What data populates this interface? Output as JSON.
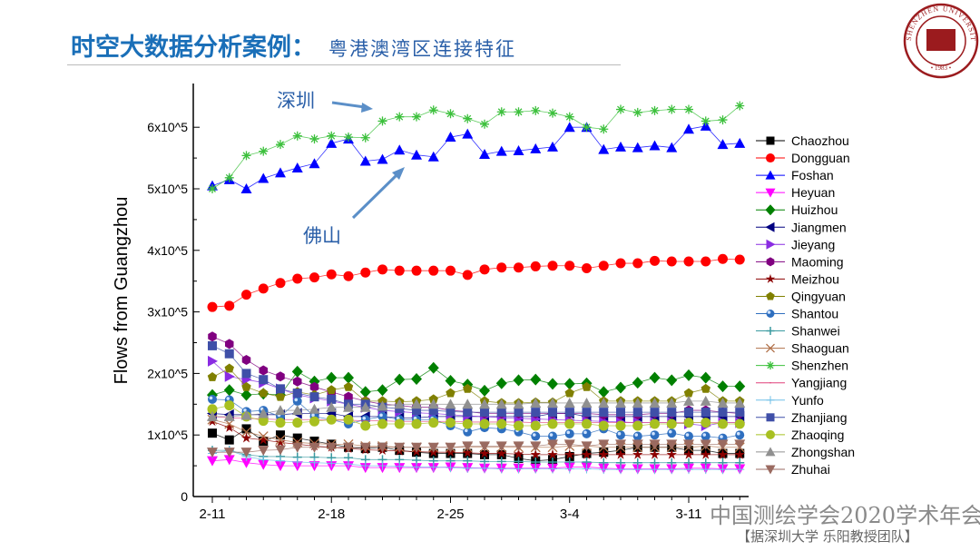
{
  "header": {
    "title": "时空大数据分析案例：",
    "subtitle": "粤港澳湾区连接特征"
  },
  "logo": {
    "text": "SHENZHEN UNIVERSITY",
    "year": "1983",
    "color": "#9b1b1e"
  },
  "watermark": {
    "line1": "中国测绘学会2020学术年会",
    "line2": "【据深圳大学 乐阳教授团队】"
  },
  "annotations": [
    {
      "text": "深圳",
      "color": "#2a5fa8"
    },
    {
      "text": "佛山",
      "color": "#2a5fa8"
    }
  ],
  "chart_data": {
    "type": "line",
    "title": "",
    "xlabel": "",
    "ylabel": "Flows from Guangzhou",
    "ylim": [
      0,
      650000
    ],
    "y_ticks": [
      0,
      100000,
      200000,
      300000,
      400000,
      500000,
      600000
    ],
    "y_tick_labels": [
      "0",
      "1x10^5",
      "2x10^5",
      "3x10^5",
      "4x10^5",
      "5x10^5",
      "6x10^5"
    ],
    "x_tick_labels": [
      "2-11",
      "2-18",
      "2-25",
      "3-4",
      "3-11"
    ],
    "x_tick_indices": [
      0,
      7,
      14,
      21,
      28
    ],
    "x": [
      "2-11",
      "2-12",
      "2-13",
      "2-14",
      "2-15",
      "2-16",
      "2-17",
      "2-18",
      "2-19",
      "2-20",
      "2-21",
      "2-22",
      "2-23",
      "2-24",
      "2-25",
      "2-26",
      "2-27",
      "2-28",
      "2-29",
      "3-1",
      "3-2",
      "3-3",
      "3-4",
      "3-5",
      "3-6",
      "3-7",
      "3-8",
      "3-9",
      "3-10",
      "3-11",
      "3-12",
      "3-13"
    ],
    "grid": false,
    "legend_placement": "right",
    "series": [
      {
        "name": "Chaozhou",
        "color": "#000000",
        "marker": "square",
        "values": [
          103000,
          92000,
          110000,
          90000,
          100000,
          95000,
          90000,
          85000,
          80000,
          78000,
          80000,
          75000,
          72000,
          70000,
          70000,
          70000,
          68000,
          68000,
          62000,
          58000,
          60000,
          65000,
          70000,
          72000,
          75000,
          80000,
          80000,
          80000,
          75000,
          75000,
          70000,
          70000
        ]
      },
      {
        "name": "Dongguan",
        "color": "#ff0000",
        "marker": "circle",
        "values": [
          308000,
          310000,
          328000,
          338000,
          347000,
          354000,
          356000,
          361000,
          358000,
          364000,
          369000,
          367000,
          367000,
          367000,
          367000,
          360000,
          369000,
          372000,
          372000,
          374000,
          375000,
          375000,
          371000,
          375000,
          379000,
          379000,
          383000,
          382000,
          382000,
          382000,
          386000,
          385000
        ]
      },
      {
        "name": "Foshan",
        "color": "#0000ff",
        "marker": "triangle-up",
        "values": [
          505000,
          515000,
          500000,
          517000,
          526000,
          534000,
          541000,
          574000,
          581000,
          545000,
          548000,
          563000,
          555000,
          552000,
          584000,
          589000,
          556000,
          561000,
          562000,
          565000,
          568000,
          600000,
          600000,
          564000,
          568000,
          567000,
          570000,
          567000,
          597000,
          602000,
          572000,
          574000
        ]
      },
      {
        "name": "Heyuan",
        "color": "#ff00ff",
        "marker": "triangle-down",
        "values": [
          58000,
          60000,
          55000,
          52000,
          50000,
          50000,
          50000,
          50000,
          50000,
          47000,
          47000,
          47000,
          47000,
          47000,
          48000,
          47000,
          46000,
          46000,
          46000,
          46000,
          46000,
          48000,
          48000,
          46000,
          45000,
          45000,
          45000,
          45000,
          46000,
          46000,
          45000,
          45000
        ]
      },
      {
        "name": "Huizhou",
        "color": "#008000",
        "marker": "diamond",
        "values": [
          165000,
          173000,
          165000,
          167000,
          165000,
          203000,
          187000,
          193000,
          193000,
          170000,
          173000,
          190000,
          191000,
          209000,
          188000,
          182000,
          172000,
          184000,
          189000,
          190000,
          183000,
          183000,
          184000,
          170000,
          177000,
          185000,
          193000,
          189000,
          197000,
          193000,
          179000,
          179000
        ]
      },
      {
        "name": "Jiangmen",
        "color": "#000080",
        "marker": "triangle-left",
        "values": [
          135000,
          133000,
          133000,
          133000,
          133000,
          135000,
          135000,
          135000,
          130000,
          130000,
          130000,
          128000,
          128000,
          130000,
          130000,
          130000,
          130000,
          130000,
          130000,
          130000,
          135000,
          135000,
          130000,
          130000,
          130000,
          130000,
          130000,
          130000,
          130000,
          130000,
          130000,
          130000
        ]
      },
      {
        "name": "Jieyang",
        "color": "#8a2be2",
        "marker": "triangle-right",
        "values": [
          220000,
          195000,
          190000,
          185000,
          175000,
          165000,
          160000,
          155000,
          150000,
          145000,
          140000,
          138000,
          136000,
          135000,
          133000,
          131000,
          130000,
          128000,
          127000,
          126000,
          125000,
          124000,
          123000,
          122000,
          121000,
          120000,
          120000,
          120000,
          118000,
          115000,
          120000,
          120000
        ]
      },
      {
        "name": "Maoming",
        "color": "#800080",
        "marker": "hexagon",
        "values": [
          260000,
          248000,
          222000,
          205000,
          195000,
          187000,
          178000,
          170000,
          162000,
          155000,
          150000,
          148000,
          145000,
          145000,
          140000,
          138000,
          135000,
          135000,
          135000,
          135000,
          135000,
          135000,
          135000,
          133000,
          133000,
          133000,
          135000,
          135000,
          140000,
          140000,
          137000,
          135000
        ]
      },
      {
        "name": "Meizhou",
        "color": "#8b0000",
        "marker": "star",
        "values": [
          122000,
          112000,
          95000,
          92000,
          88000,
          85000,
          82000,
          80000,
          78000,
          76000,
          75000,
          74000,
          73000,
          72000,
          72000,
          71000,
          70000,
          70000,
          69000,
          68000,
          68000,
          68000,
          68000,
          68000,
          68000,
          68000,
          68000,
          68000,
          68000,
          68000,
          68000,
          68000
        ]
      },
      {
        "name": "Qingyuan",
        "color": "#808000",
        "marker": "pentagon",
        "values": [
          194000,
          208000,
          178000,
          168000,
          162000,
          170000,
          165000,
          173000,
          178000,
          155000,
          155000,
          154000,
          155000,
          158000,
          168000,
          175000,
          155000,
          152000,
          152000,
          153000,
          153000,
          168000,
          178000,
          155000,
          155000,
          155000,
          155000,
          155000,
          168000,
          175000,
          155000,
          155000
        ]
      },
      {
        "name": "Shantou",
        "color": "#2f6fbf",
        "marker": "sphere",
        "values": [
          158000,
          157000,
          138000,
          140000,
          130000,
          155000,
          130000,
          125000,
          118000,
          125000,
          130000,
          125000,
          125000,
          125000,
          115000,
          105000,
          112000,
          110000,
          105000,
          98000,
          98000,
          102000,
          102000,
          110000,
          100000,
          98000,
          100000,
          103000,
          98000,
          98000,
          95000,
          100000
        ]
      },
      {
        "name": "Shanwei",
        "color": "#3a9aa0",
        "marker": "plus",
        "values": [
          75000,
          75000,
          68000,
          65000,
          65000,
          64000,
          64000,
          63000,
          63000,
          60000,
          60000,
          60000,
          59000,
          58000,
          58000,
          58000,
          57000,
          57000,
          57000,
          56000,
          56000,
          56000,
          56000,
          55000,
          55000,
          55000,
          55000,
          55000,
          55000,
          55000,
          55000,
          55000
        ]
      },
      {
        "name": "Shaoguan",
        "color": "#b07048",
        "marker": "x",
        "values": [
          125000,
          118000,
          105000,
          98000,
          92000,
          88000,
          86000,
          85000,
          85000,
          82000,
          82000,
          80000,
          80000,
          80000,
          80000,
          80000,
          80000,
          80000,
          80000,
          80000,
          80000,
          82000,
          82000,
          80000,
          80000,
          80000,
          80000,
          80000,
          80000,
          82000,
          80000,
          80000
        ]
      },
      {
        "name": "Shenzhen",
        "color": "#3cc03c",
        "marker": "asterisk",
        "values": [
          500000,
          518000,
          554000,
          561000,
          572000,
          586000,
          581000,
          586000,
          584000,
          583000,
          610000,
          617000,
          617000,
          628000,
          622000,
          614000,
          605000,
          625000,
          625000,
          627000,
          623000,
          617000,
          600000,
          597000,
          629000,
          624000,
          627000,
          629000,
          629000,
          610000,
          612000,
          635000
        ]
      },
      {
        "name": "Yangjiang",
        "color": "#e0407a",
        "marker": "dash",
        "values": [
          130000,
          128000,
          127000,
          126000,
          125000,
          125000,
          125000,
          124000,
          124000,
          123000,
          123000,
          122000,
          122000,
          122000,
          122000,
          121000,
          121000,
          121000,
          121000,
          120000,
          120000,
          120000,
          120000,
          120000,
          120000,
          120000,
          120000,
          120000,
          120000,
          120000,
          120000,
          120000
        ]
      },
      {
        "name": "Yunfo",
        "color": "#70c0e8",
        "marker": "plus-thin",
        "values": [
          70000,
          75000,
          65000,
          60000,
          58000,
          56000,
          55000,
          54000,
          53000,
          50000,
          50000,
          49000,
          48000,
          48000,
          47000,
          46000,
          46000,
          45000,
          45000,
          45000,
          45000,
          45000,
          45000,
          44000,
          44000,
          44000,
          44000,
          44000,
          44000,
          44000,
          44000,
          44000
        ]
      },
      {
        "name": "Zhanjiang",
        "color": "#3f4fa8",
        "marker": "square",
        "values": [
          245000,
          232000,
          200000,
          190000,
          175000,
          168000,
          162000,
          158000,
          150000,
          150000,
          145000,
          143000,
          140000,
          140000,
          138000,
          137000,
          137000,
          137000,
          137000,
          137000,
          137000,
          137000,
          137000,
          137000,
          137000,
          137000,
          137000,
          137000,
          137000,
          137000,
          137000,
          137000
        ]
      },
      {
        "name": "Zhaoqing",
        "color": "#a8c020",
        "marker": "circle",
        "values": [
          142000,
          148000,
          130000,
          123000,
          120000,
          120000,
          122000,
          125000,
          125000,
          115000,
          118000,
          118000,
          118000,
          120000,
          120000,
          118000,
          118000,
          118000,
          115000,
          115000,
          118000,
          118000,
          118000,
          115000,
          115000,
          115000,
          118000,
          118000,
          120000,
          120000,
          118000,
          118000
        ]
      },
      {
        "name": "Zhongshan",
        "color": "#909090",
        "marker": "triangle-up",
        "values": [
          130000,
          130000,
          132000,
          135000,
          140000,
          140000,
          142000,
          145000,
          145000,
          145000,
          147000,
          150000,
          150000,
          150000,
          150000,
          150000,
          150000,
          150000,
          150000,
          152000,
          152000,
          152000,
          152000,
          152000,
          152000,
          152000,
          152000,
          152000,
          155000,
          155000,
          152000,
          152000
        ]
      },
      {
        "name": "Zhuhai",
        "color": "#9a6a60",
        "marker": "triangle-down",
        "values": [
          72000,
          72000,
          72000,
          75000,
          76000,
          80000,
          80000,
          80000,
          80000,
          80000,
          80000,
          80000,
          80000,
          80000,
          80000,
          82000,
          82000,
          82000,
          82000,
          82000,
          85000,
          85000,
          82000,
          85000,
          85000,
          85000,
          85000,
          85000,
          85000,
          85000,
          85000,
          85000
        ]
      }
    ]
  }
}
